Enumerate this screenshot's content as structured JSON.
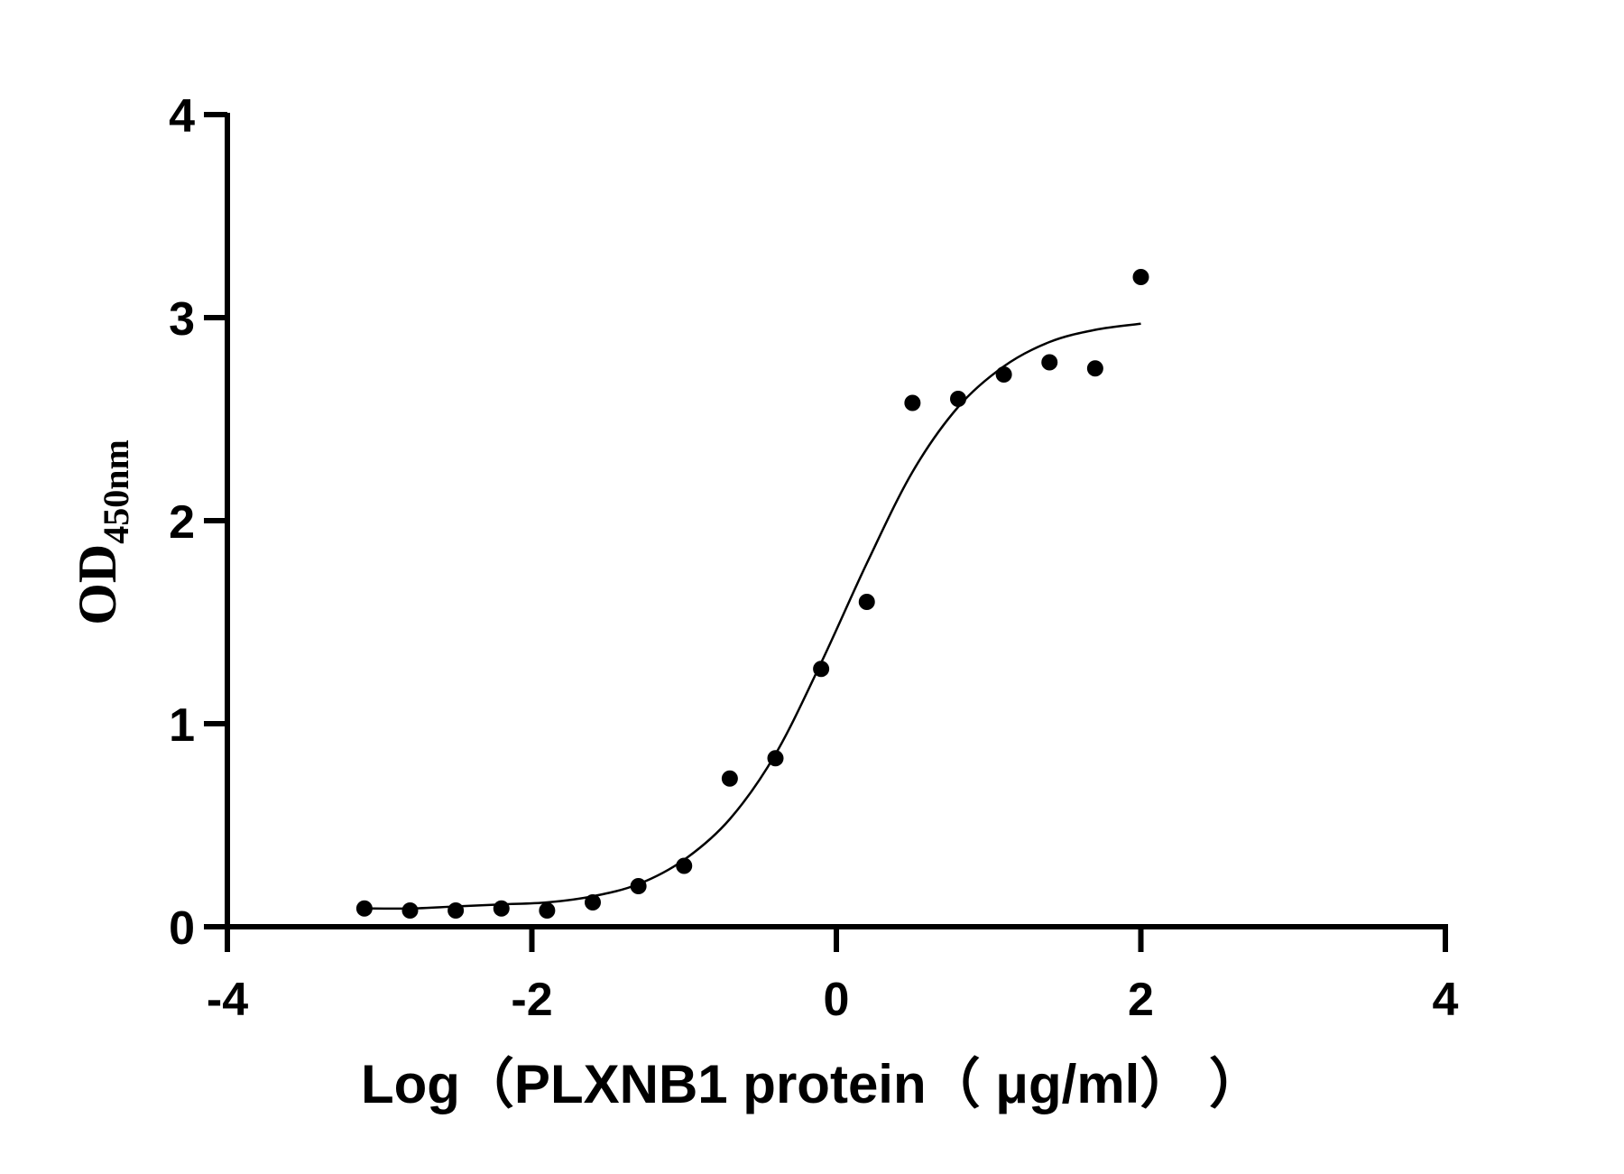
{
  "chart_data": {
    "type": "scatter",
    "xlabel": "Log（PLXNB1 protein（ μg/ml）  ）",
    "ylabel": "OD",
    "ylabel_subscript": "450nm",
    "xlim": [
      -4,
      4
    ],
    "xticks": [
      -4,
      -2,
      0,
      2,
      4
    ],
    "ylim": [
      0,
      4
    ],
    "yticks": [
      0,
      1,
      2,
      3,
      4
    ],
    "color": "#000000",
    "x": [
      -3.1,
      -2.8,
      -2.5,
      -2.2,
      -1.9,
      -1.6,
      -1.3,
      -1.0,
      -0.7,
      -0.4,
      -0.1,
      0.2,
      0.5,
      0.8,
      1.1,
      1.4,
      1.7,
      2.0
    ],
    "values": [
      0.09,
      0.08,
      0.08,
      0.09,
      0.08,
      0.12,
      0.2,
      0.3,
      0.73,
      0.83,
      1.27,
      1.6,
      2.58,
      2.6,
      2.72,
      2.78,
      2.75,
      3.2
    ],
    "fit_values": [
      0.09,
      0.09,
      0.1,
      0.11,
      0.12,
      0.15,
      0.21,
      0.33,
      0.53,
      0.85,
      1.3,
      1.79,
      2.24,
      2.56,
      2.76,
      2.88,
      2.94,
      2.97
    ]
  }
}
